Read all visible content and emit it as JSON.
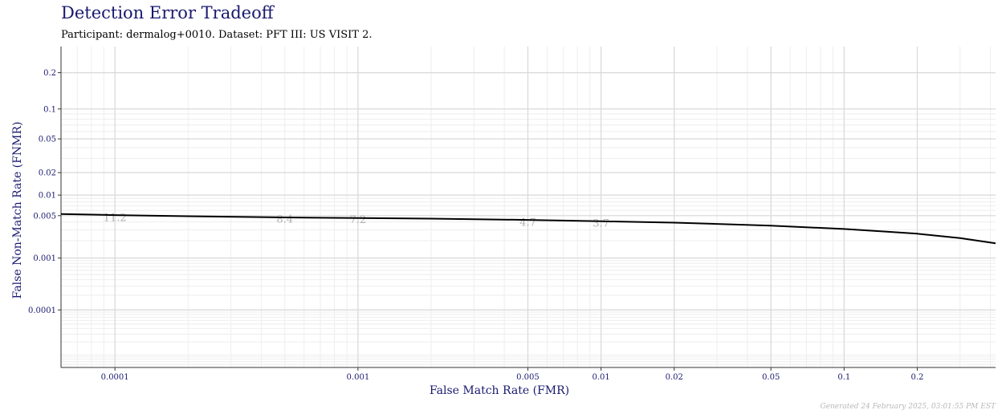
{
  "header": {
    "title": "Detection Error Tradeoff",
    "subtitle": "Participant: dermalog+0010. Dataset: PFT III: US VISIT 2."
  },
  "footer": {
    "generated": "Generated 24 February 2025, 03:01:55 PM EST"
  },
  "colors": {
    "title": "#191970",
    "axis_text": "#191970",
    "grid_major": "#d9d9d9",
    "grid_minor": "#eeeeee",
    "curve": "#000000",
    "threshold_label": "#b0b0b0"
  },
  "chart_data": {
    "type": "line",
    "title": "Detection Error Tradeoff",
    "subtitle": "Participant: dermalog+0010. Dataset: PFT III: US VISIT 2.",
    "xlabel": "False Match Rate (FMR)",
    "ylabel": "False Non-Match Rate (FNMR)",
    "x_scale": "log",
    "y_scale": "probit",
    "xlim": [
      6e-05,
      0.42
    ],
    "ylim": [
      5e-06,
      0.3
    ],
    "x_ticks": [
      {
        "value": 0.0001,
        "label": "0.0001"
      },
      {
        "value": 0.001,
        "label": "0.001"
      },
      {
        "value": 0.005,
        "label": "0.005"
      },
      {
        "value": 0.01,
        "label": "0.01"
      },
      {
        "value": 0.02,
        "label": "0.02"
      },
      {
        "value": 0.05,
        "label": "0.05"
      },
      {
        "value": 0.1,
        "label": "0.1"
      },
      {
        "value": 0.2,
        "label": "0.2"
      }
    ],
    "y_ticks": [
      {
        "value": 0.2,
        "label": "0.2"
      },
      {
        "value": 0.1,
        "label": "0.1"
      },
      {
        "value": 0.05,
        "label": "0.05"
      },
      {
        "value": 0.02,
        "label": "0.02"
      },
      {
        "value": 0.01,
        "label": "0.01"
      },
      {
        "value": 0.005,
        "label": "0.005"
      },
      {
        "value": 0.001,
        "label": "0.001"
      },
      {
        "value": 0.0001,
        "label": "0.0001"
      }
    ],
    "grid": true,
    "legend": "none",
    "series": [
      {
        "x": [
          6e-05,
          0.0001,
          0.0002,
          0.0005,
          0.001,
          0.002,
          0.005,
          0.01,
          0.02,
          0.05,
          0.1,
          0.15,
          0.2,
          0.3,
          0.42
        ],
        "y": [
          0.0053,
          0.0051,
          0.0049,
          0.0047,
          0.0046,
          0.0045,
          0.0043,
          0.0041,
          0.0039,
          0.0035,
          0.0031,
          0.0028,
          0.0026,
          0.0022,
          0.0018
        ]
      }
    ],
    "annotations": [
      {
        "x": 0.0001,
        "y": 0.0046,
        "text": "11.2"
      },
      {
        "x": 0.0005,
        "y": 0.0044,
        "text": "8.4"
      },
      {
        "x": 0.001,
        "y": 0.0043,
        "text": "7.2"
      },
      {
        "x": 0.005,
        "y": 0.0039,
        "text": "4.7"
      },
      {
        "x": 0.01,
        "y": 0.0038,
        "text": "3.7"
      }
    ]
  }
}
